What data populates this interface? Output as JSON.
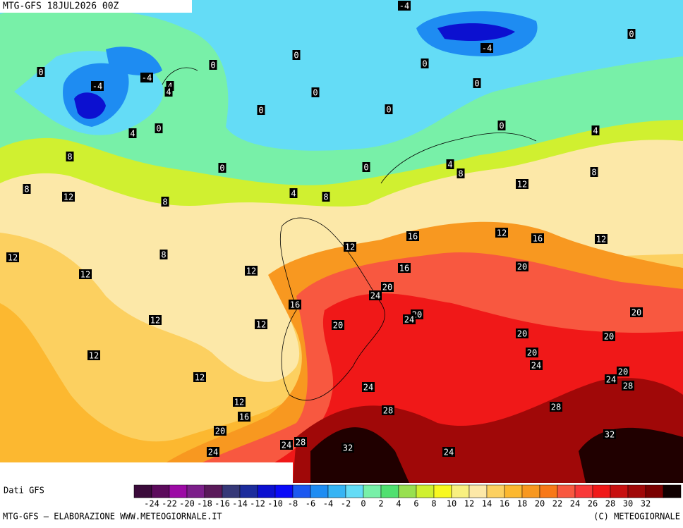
{
  "header": {
    "title": "MTG-GFS 18JUL2026 00Z"
  },
  "map": {
    "contour_labels": [
      -4,
      0,
      -4,
      0,
      0,
      0,
      0,
      -4,
      -4,
      4,
      0,
      4,
      0,
      0,
      0,
      0,
      4,
      0,
      4,
      8,
      4,
      0,
      0,
      8,
      8,
      12,
      8,
      12,
      4,
      8,
      8,
      12,
      16,
      16,
      12,
      12,
      8,
      12,
      20,
      16,
      12,
      12,
      20,
      24,
      16,
      20,
      20,
      24,
      12,
      12,
      20,
      20,
      20,
      20,
      12,
      24,
      20,
      12,
      24,
      28,
      24,
      12,
      28,
      28,
      16,
      20,
      32,
      24,
      28,
      32,
      24,
      24
    ]
  },
  "legend": {
    "title": "Dati GFS",
    "colors": [
      "#3b0b3b",
      "#5c0b5c",
      "#9c0aa5",
      "#7c1f8a",
      "#5a1a5a",
      "#363878",
      "#1c2c9c",
      "#0c10d0",
      "#0a0af8",
      "#1c58f0",
      "#1e8cf2",
      "#36b4f4",
      "#64dcf6",
      "#78f0a8",
      "#50e070",
      "#98e050",
      "#d0f030",
      "#f8f820",
      "#f8f080",
      "#fce8a8",
      "#fcd060",
      "#fcb830",
      "#f89820",
      "#f87818",
      "#f85840",
      "#f83838",
      "#f01818",
      "#c81010",
      "#a00808",
      "#7a0000",
      "#100000"
    ],
    "ticks": [
      -24,
      -22,
      -20,
      -18,
      -16,
      -14,
      -12,
      -10,
      -8,
      -6,
      -4,
      -2,
      0,
      2,
      4,
      6,
      8,
      10,
      12,
      14,
      16,
      18,
      20,
      22,
      24,
      26,
      28,
      30,
      32
    ]
  },
  "footer": {
    "left": "MTG-GFS — ELABORAZIONE WWW.METEOGIORNALE.IT",
    "right": "(C) METEOGIORNALE"
  }
}
